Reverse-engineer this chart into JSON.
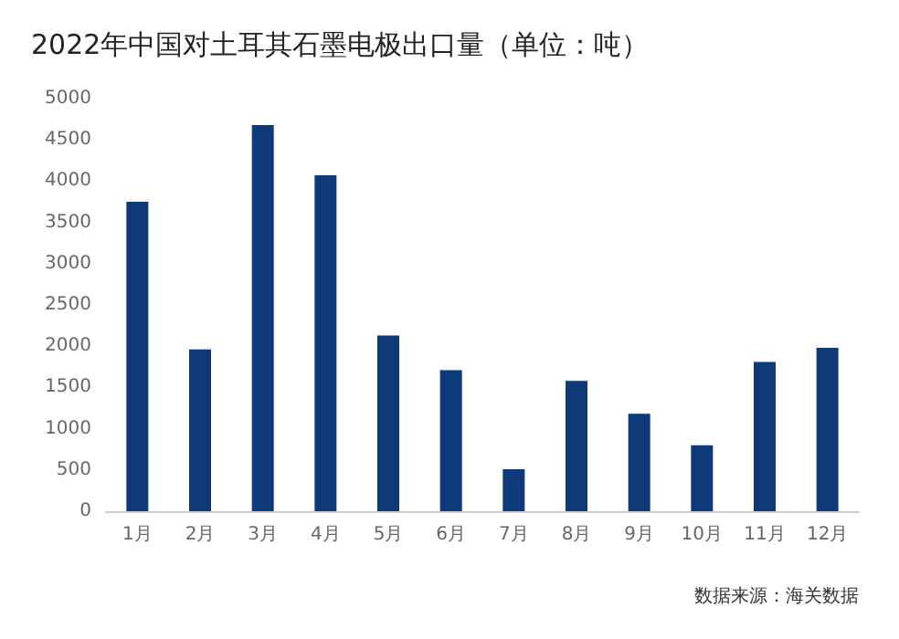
{
  "chart_data": {
    "type": "bar",
    "title": "2022年中国对土耳其石墨电极出口量（单位：吨）",
    "categories": [
      "1月",
      "2月",
      "3月",
      "4月",
      "5月",
      "6月",
      "7月",
      "8月",
      "9月",
      "10月",
      "11月",
      "12月"
    ],
    "values": [
      3750,
      1960,
      4680,
      4070,
      2130,
      1710,
      510,
      1580,
      1180,
      800,
      1810,
      1980
    ],
    "color": "#0e3a7a",
    "ylim": [
      0,
      5000
    ],
    "yticks": [
      0,
      500,
      1000,
      1500,
      2000,
      2500,
      3000,
      3500,
      4000,
      4500,
      5000
    ],
    "grid": false,
    "annotations": [
      "数据来源：海关数据"
    ]
  }
}
